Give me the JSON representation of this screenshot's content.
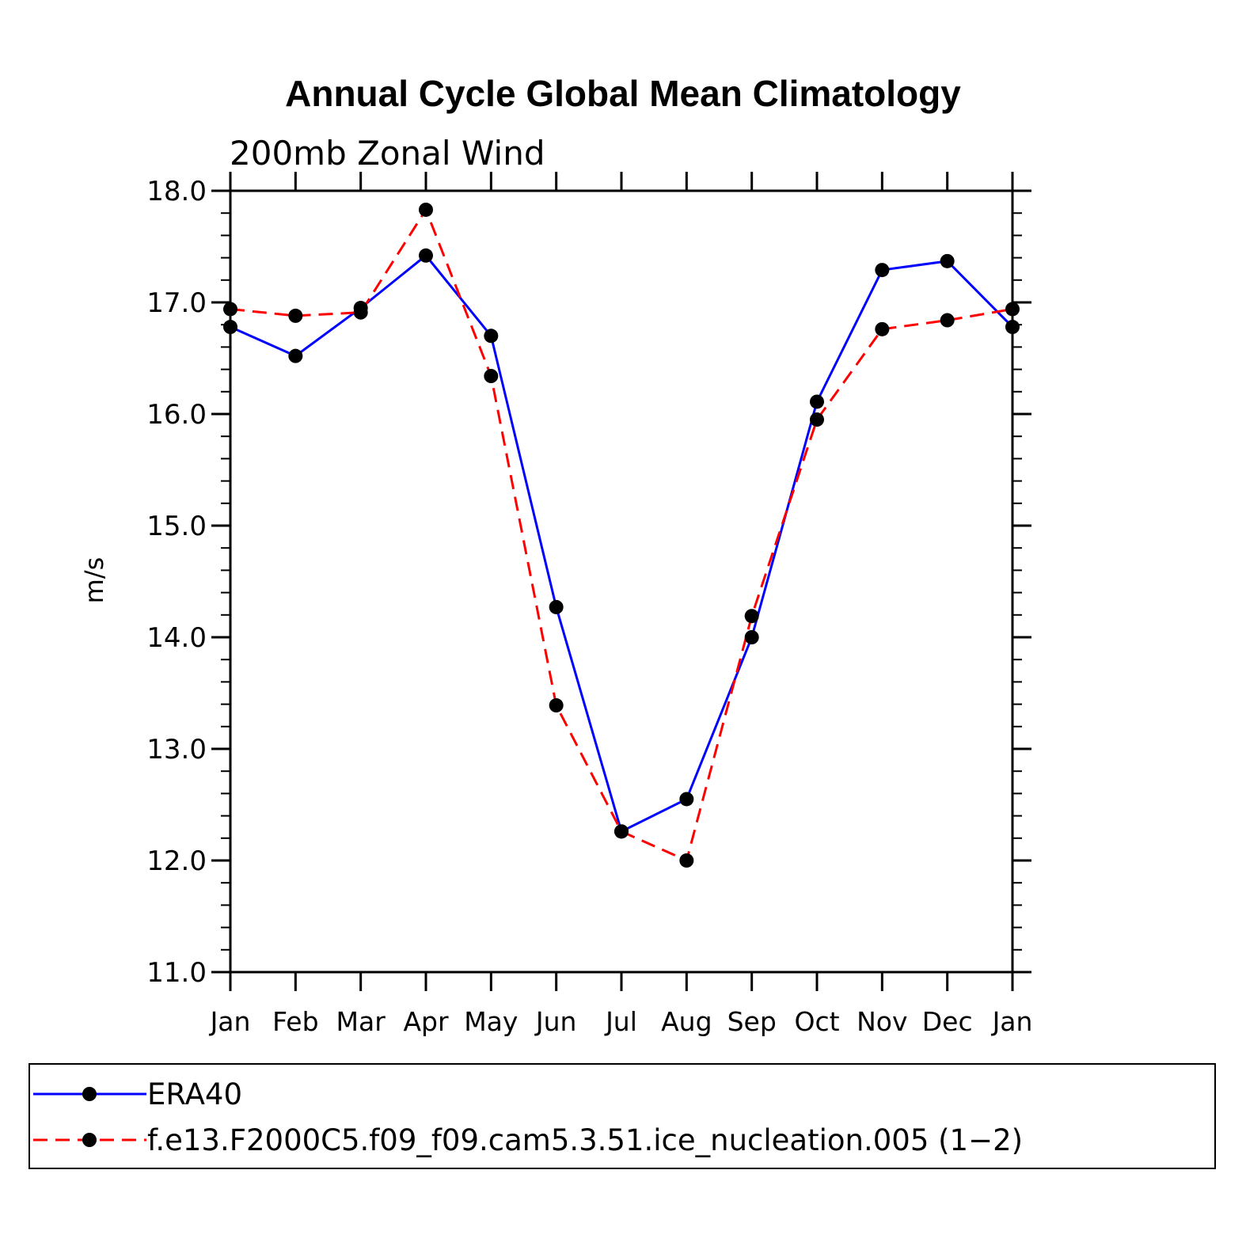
{
  "chart_data": {
    "type": "line",
    "title": "Annual Cycle Global Mean Climatology",
    "subtitle": "200mb  Zonal  Wind",
    "xlabel": "",
    "ylabel": "m/s",
    "categories": [
      "Jan",
      "Feb",
      "Mar",
      "Apr",
      "May",
      "Jun",
      "Jul",
      "Aug",
      "Sep",
      "Oct",
      "Nov",
      "Dec",
      "Jan"
    ],
    "ylim": [
      11.0,
      18.0
    ],
    "yticks": [
      "11.0",
      "12.0",
      "13.0",
      "14.0",
      "15.0",
      "16.0",
      "17.0",
      "18.0"
    ],
    "grid": false,
    "legend_position": "bottom",
    "series": [
      {
        "name": "ERA40",
        "color": "#0000ff",
        "line_style": "solid",
        "values": [
          16.78,
          16.52,
          16.95,
          17.42,
          16.7,
          14.27,
          12.26,
          12.55,
          14.0,
          16.11,
          17.29,
          17.37,
          16.78
        ]
      },
      {
        "name": "f.e13.F2000C5.f09_f09.cam5.3.51.ice_nucleation.005 (1−2)",
        "color": "#ff0000",
        "line_style": "dashed",
        "values": [
          16.94,
          16.88,
          16.91,
          17.83,
          16.34,
          13.39,
          12.26,
          12.0,
          14.19,
          15.95,
          16.76,
          16.84,
          16.94
        ]
      }
    ]
  }
}
